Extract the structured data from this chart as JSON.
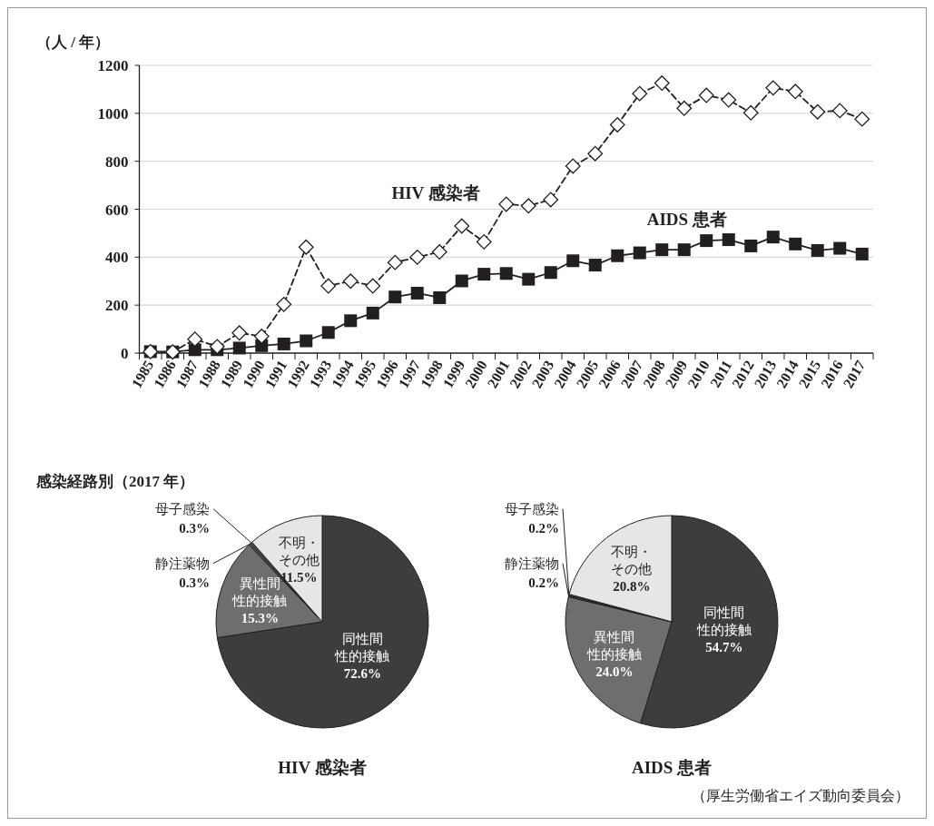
{
  "chart_data": [
    {
      "type": "line",
      "ylabel": "（人 / 年）",
      "categories": [
        "1985",
        "1986",
        "1987",
        "1988",
        "1989",
        "1990",
        "1991",
        "1992",
        "1993",
        "1994",
        "1995",
        "1996",
        "1997",
        "1998",
        "1999",
        "2000",
        "2001",
        "2002",
        "2003",
        "2004",
        "2005",
        "2006",
        "2007",
        "2008",
        "2009",
        "2010",
        "2011",
        "2012",
        "2013",
        "2014",
        "2015",
        "2016",
        "2017"
      ],
      "ylim": [
        0,
        1200
      ],
      "yticks": [
        0,
        200,
        400,
        600,
        800,
        1000,
        1200
      ],
      "grid": "y",
      "legend": false,
      "series": [
        {
          "name": "HIV 感染者",
          "color": "#231f20",
          "marker": "diamond",
          "line_style": "dashed",
          "values": [
            6,
            5,
            58,
            27,
            84,
            70,
            203,
            442,
            280,
            300,
            280,
            378,
            400,
            422,
            530,
            464,
            621,
            614,
            640,
            780,
            832,
            952,
            1082,
            1126,
            1021,
            1075,
            1056,
            1002,
            1106,
            1091,
            1006,
            1011,
            976
          ]
        },
        {
          "name": "AIDS 患者",
          "color": "#231f20",
          "marker": "square",
          "line_style": "solid",
          "values": [
            6,
            5,
            14,
            14,
            21,
            31,
            38,
            51,
            86,
            135,
            167,
            234,
            250,
            231,
            301,
            329,
            332,
            308,
            336,
            385,
            367,
            406,
            418,
            431,
            431,
            469,
            473,
            447,
            484,
            455,
            428,
            437,
            413
          ]
        }
      ]
    },
    {
      "type": "pie",
      "title": "HIV 感染者",
      "annotations": [
        "感染経路別（2017 年）"
      ],
      "categories": [
        "同性間性的接触",
        "異性間性的接触",
        "静注薬物",
        "母子感染",
        "不明・その他"
      ],
      "values": [
        72.6,
        15.3,
        0.3,
        0.3,
        11.5
      ],
      "value_labels": [
        "72.6%",
        "15.3%",
        "0.3%",
        "0.3%",
        "11.5%"
      ],
      "colors": [
        "#3d3d3d",
        "#6e6e6e",
        "#555555",
        "#555555",
        "#e6e6e6"
      ]
    },
    {
      "type": "pie",
      "title": "AIDS 患者",
      "annotations": [
        "（厚生労働省エイズ動向委員会）"
      ],
      "categories": [
        "同性間性的接触",
        "異性間性的接触",
        "静注薬物",
        "母子感染",
        "不明・その他"
      ],
      "values": [
        54.7,
        24.0,
        0.2,
        0.2,
        20.8
      ],
      "value_labels": [
        "54.7%",
        "24.0%",
        "0.2%",
        "0.2%",
        "20.8%"
      ],
      "colors": [
        "#3d3d3d",
        "#6e6e6e",
        "#555555",
        "#555555",
        "#e6e6e6"
      ]
    }
  ]
}
